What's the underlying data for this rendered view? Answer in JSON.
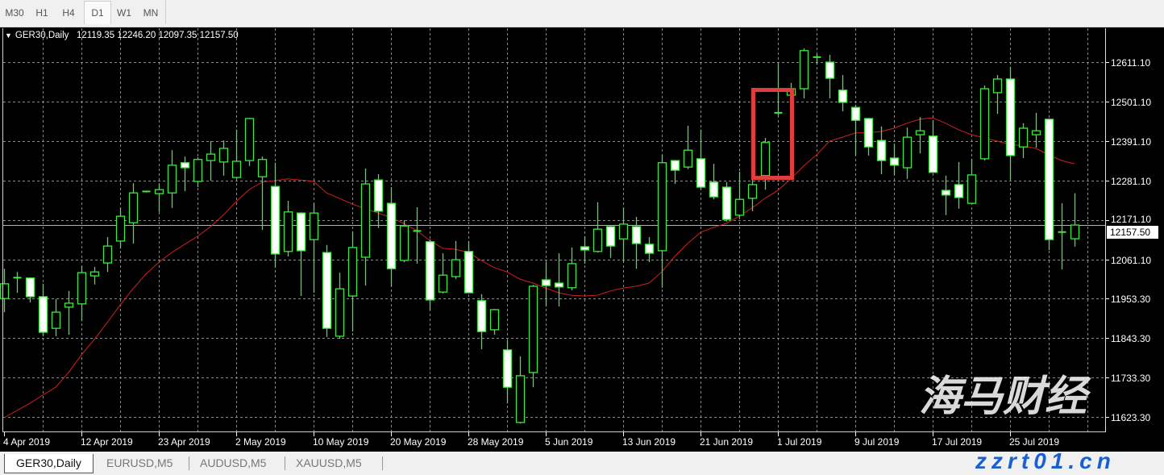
{
  "timeframes": {
    "items": [
      "M30",
      "H1",
      "H4",
      "D1",
      "W1",
      "MN"
    ],
    "active": "D1"
  },
  "chart_header": {
    "symbol": "GER30,Daily",
    "open": "12119.35",
    "high": "12246.20",
    "low": "12097.35",
    "close": "12157.50"
  },
  "price_axis": {
    "labels": [
      "12611.10",
      "12501.10",
      "12391.10",
      "12281.10",
      "12171.10",
      "12061.10",
      "11953.30",
      "11843.30",
      "11733.30",
      "11623.30"
    ],
    "current_price": "12157.50"
  },
  "date_axis": {
    "labels": [
      {
        "bar": 1,
        "text": "4 Apr 2019"
      },
      {
        "bar": 7,
        "text": "12 Apr 2019"
      },
      {
        "bar": 13,
        "text": "23 Apr 2019"
      },
      {
        "bar": 19,
        "text": "2 May 2019"
      },
      {
        "bar": 25,
        "text": "10 May 2019"
      },
      {
        "bar": 31,
        "text": "20 May 2019"
      },
      {
        "bar": 37,
        "text": "28 May 2019"
      },
      {
        "bar": 43,
        "text": "5 Jun 2019"
      },
      {
        "bar": 49,
        "text": "13 Jun 2019"
      },
      {
        "bar": 55,
        "text": "21 Jun 2019"
      },
      {
        "bar": 61,
        "text": "1 Jul 2019"
      },
      {
        "bar": 67,
        "text": "9 Jul 2019"
      },
      {
        "bar": 73,
        "text": "17 Jul 2019"
      },
      {
        "bar": 79,
        "text": "25 Jul 2019"
      }
    ]
  },
  "chart_data": {
    "type": "candlestick",
    "symbol": "GER30",
    "period": "Daily",
    "ylim": [
      11600,
      12680
    ],
    "grid": true,
    "colors": {
      "background": "#000000",
      "candle": "#3ee83e",
      "bear_body": "#ffffff",
      "bull_body": "#000000",
      "ma_line": "#d02020",
      "grid": "#8a8a8a",
      "highlight": "#e23c3c"
    },
    "ohlc": [
      [
        11953,
        12036,
        11915,
        11994
      ],
      [
        12008,
        12027,
        11969,
        12011
      ],
      [
        12010,
        12012,
        11942,
        11958
      ],
      [
        11958,
        11994,
        11848,
        11859
      ],
      [
        11870,
        11951,
        11848,
        11915
      ],
      [
        11929,
        11974,
        11852,
        11940
      ],
      [
        11938,
        12043,
        11890,
        12025
      ],
      [
        12016,
        12041,
        11992,
        12027
      ],
      [
        12052,
        12124,
        12027,
        12099
      ],
      [
        12113,
        12205,
        12092,
        12182
      ],
      [
        12164,
        12274,
        12106,
        12247
      ],
      [
        12249,
        12252,
        12248,
        12251
      ],
      [
        12245,
        12272,
        12194,
        12256
      ],
      [
        12247,
        12366,
        12205,
        12324
      ],
      [
        12331,
        12348,
        12252,
        12317
      ],
      [
        12279,
        12346,
        12263,
        12340
      ],
      [
        12337,
        12391,
        12281,
        12355
      ],
      [
        12333,
        12393,
        12295,
        12371
      ],
      [
        12290,
        12423,
        12286,
        12335
      ],
      [
        12337,
        12456,
        12322,
        12454
      ],
      [
        12292,
        12348,
        12144,
        12340
      ],
      [
        12265,
        12331,
        12039,
        12077
      ],
      [
        12084,
        12225,
        12070,
        12194
      ],
      [
        12191,
        12193,
        11960,
        12086
      ],
      [
        12117,
        12218,
        11969,
        12191
      ],
      [
        12081,
        12102,
        11846,
        11870
      ],
      [
        11848,
        12025,
        11841,
        11980
      ],
      [
        11960,
        12140,
        11861,
        12095
      ],
      [
        12068,
        12315,
        11989,
        12272
      ],
      [
        12283,
        12299,
        12149,
        12196
      ],
      [
        12218,
        12263,
        11987,
        12036
      ],
      [
        12059,
        12171,
        12054,
        12155
      ],
      [
        12141,
        12207,
        12050,
        12139
      ],
      [
        12111,
        12117,
        11920,
        11949
      ],
      [
        11971,
        12079,
        11967,
        12018
      ],
      [
        12014,
        12113,
        12007,
        12061
      ],
      [
        12084,
        12113,
        11968,
        11969
      ],
      [
        11947,
        11965,
        11812,
        11861
      ],
      [
        11866,
        11924,
        11852,
        11922
      ],
      [
        11810,
        11837,
        11661,
        11706
      ],
      [
        11608,
        11792,
        11605,
        11738
      ],
      [
        11747,
        11991,
        11706,
        11987
      ],
      [
        12005,
        12054,
        11931,
        11989
      ],
      [
        11996,
        12079,
        11931,
        11985
      ],
      [
        11983,
        12095,
        11976,
        12050
      ],
      [
        12097,
        12126,
        12050,
        12088
      ],
      [
        12084,
        12221,
        12081,
        12146
      ],
      [
        12153,
        12155,
        12066,
        12099
      ],
      [
        12119,
        12205,
        12054,
        12160
      ],
      [
        12153,
        12180,
        12036,
        12106
      ],
      [
        12104,
        12124,
        12054,
        12079
      ],
      [
        12086,
        12353,
        11983,
        12331
      ],
      [
        12337,
        12339,
        12272,
        12310
      ],
      [
        12319,
        12434,
        12313,
        12366
      ],
      [
        12342,
        12423,
        12256,
        12263
      ],
      [
        12277,
        12328,
        12229,
        12236
      ],
      [
        12263,
        12277,
        12167,
        12173
      ],
      [
        12185,
        12306,
        12178,
        12229
      ],
      [
        12232,
        12283,
        12196,
        12270
      ],
      [
        12295,
        12400,
        12256,
        12387
      ],
      [
        12466,
        12609,
        12463,
        12470
      ],
      [
        12519,
        12553,
        12510,
        12537
      ],
      [
        12537,
        12649,
        12510,
        12643
      ],
      [
        12624,
        12634,
        12604,
        12625
      ],
      [
        12611,
        12631,
        12510,
        12566
      ],
      [
        12533,
        12575,
        12474,
        12499
      ],
      [
        12485,
        12492,
        12351,
        12449
      ],
      [
        12454,
        12456,
        12351,
        12375
      ],
      [
        12393,
        12432,
        12299,
        12337
      ],
      [
        12344,
        12384,
        12297,
        12324
      ],
      [
        12317,
        12429,
        12286,
        12402
      ],
      [
        12409,
        12458,
        12357,
        12420
      ],
      [
        12405,
        12449,
        12302,
        12304
      ],
      [
        12254,
        12295,
        12185,
        12241
      ],
      [
        12270,
        12333,
        12203,
        12234
      ],
      [
        12218,
        12342,
        12216,
        12297
      ],
      [
        12342,
        12546,
        12337,
        12537
      ],
      [
        12526,
        12575,
        12467,
        12564
      ],
      [
        12564,
        12598,
        12283,
        12351
      ],
      [
        12375,
        12441,
        12344,
        12427
      ],
      [
        12409,
        12470,
        12373,
        12420
      ],
      [
        12452,
        12454,
        12088,
        12117
      ],
      [
        12138,
        12218,
        12034,
        12136
      ],
      [
        12119.35,
        12246.2,
        12097.35,
        12157.5
      ]
    ],
    "moving_average": [
      11621,
      11641,
      11661,
      11684,
      11706,
      11747,
      11796,
      11839,
      11886,
      11935,
      11980,
      12021,
      12054,
      12081,
      12104,
      12126,
      12153,
      12185,
      12223,
      12256,
      12277,
      12281,
      12286,
      12283,
      12279,
      12247,
      12232,
      12216,
      12203,
      12191,
      12178,
      12162,
      12142,
      12115,
      12093,
      12090,
      12081,
      12059,
      12039,
      12027,
      12007,
      11996,
      11982,
      11969,
      11962,
      11960,
      11962,
      11974,
      11982,
      11987,
      11996,
      12027,
      12070,
      12106,
      12137,
      12151,
      12162,
      12182,
      12205,
      12232,
      12254,
      12286,
      12322,
      12353,
      12391,
      12402,
      12414,
      12414,
      12418,
      12427,
      12441,
      12452,
      12456,
      12441,
      12423,
      12409,
      12400,
      12391,
      12382,
      12378,
      12371,
      12353,
      12337,
      12328
    ],
    "highlighted_bars": [
      60,
      61,
      62
    ]
  },
  "bottom_tabs": {
    "items": [
      "GER30,Daily",
      "EURUSD,M5",
      "AUDUSD,M5",
      "XAUUSD,M5"
    ],
    "active": "GER30,Daily"
  },
  "watermark": {
    "title": "海马财经",
    "url": "zzrt01.cn"
  }
}
